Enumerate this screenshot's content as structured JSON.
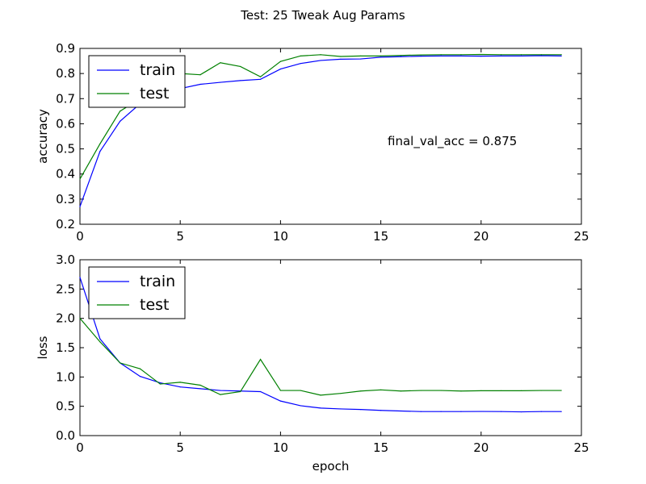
{
  "chart_data": {
    "title": "Test: 25 Tweak Aug Params",
    "colors": {
      "train": "#0000ff",
      "test": "#008000"
    },
    "subplots": [
      {
        "type": "line",
        "xlabel": "",
        "ylabel": "accuracy",
        "xlim": [
          0,
          25
        ],
        "ylim": [
          0.2,
          0.9
        ],
        "xticks": [
          "0",
          "5",
          "10",
          "15",
          "20",
          "25"
        ],
        "yticks": [
          "0.2",
          "0.3",
          "0.4",
          "0.5",
          "0.6",
          "0.7",
          "0.8",
          "0.9"
        ],
        "legend_position": "top-left",
        "annotation": "final_val_acc = 0.875",
        "x": [
          0,
          1,
          2,
          3,
          4,
          5,
          6,
          7,
          8,
          9,
          10,
          11,
          12,
          13,
          14,
          15,
          16,
          17,
          18,
          19,
          20,
          21,
          22,
          23,
          24
        ],
        "series": [
          {
            "name": "train",
            "values": [
              0.27,
              0.49,
              0.61,
              0.68,
              0.71,
              0.74,
              0.757,
              0.765,
              0.772,
              0.777,
              0.818,
              0.84,
              0.852,
              0.857,
              0.858,
              0.865,
              0.867,
              0.869,
              0.87,
              0.87,
              0.869,
              0.87,
              0.87,
              0.871,
              0.87
            ]
          },
          {
            "name": "test",
            "values": [
              0.38,
              0.52,
              0.65,
              0.7,
              0.74,
              0.8,
              0.795,
              0.843,
              0.828,
              0.787,
              0.848,
              0.87,
              0.875,
              0.868,
              0.87,
              0.87,
              0.872,
              0.874,
              0.875,
              0.875,
              0.876,
              0.875,
              0.875,
              0.875,
              0.875
            ]
          }
        ]
      },
      {
        "type": "line",
        "xlabel": "epoch",
        "ylabel": "loss",
        "xlim": [
          0,
          25
        ],
        "ylim": [
          0.0,
          3.0
        ],
        "xticks": [
          "0",
          "5",
          "10",
          "15",
          "20",
          "25"
        ],
        "yticks": [
          "0.0",
          "0.5",
          "1.0",
          "1.5",
          "2.0",
          "2.5",
          "3.0"
        ],
        "legend_position": "top-left",
        "x": [
          0,
          1,
          2,
          3,
          4,
          5,
          6,
          7,
          8,
          9,
          10,
          11,
          12,
          13,
          14,
          15,
          16,
          17,
          18,
          19,
          20,
          21,
          22,
          23,
          24
        ],
        "series": [
          {
            "name": "train",
            "values": [
              2.7,
              1.65,
              1.24,
              1.01,
              0.9,
              0.83,
              0.8,
              0.77,
              0.76,
              0.75,
              0.59,
              0.51,
              0.47,
              0.455,
              0.445,
              0.43,
              0.42,
              0.41,
              0.41,
              0.41,
              0.412,
              0.41,
              0.405,
              0.41,
              0.41
            ]
          },
          {
            "name": "test",
            "values": [
              2.0,
              1.6,
              1.24,
              1.14,
              0.88,
              0.91,
              0.86,
              0.7,
              0.75,
              1.3,
              0.77,
              0.77,
              0.69,
              0.72,
              0.76,
              0.78,
              0.76,
              0.77,
              0.77,
              0.76,
              0.765,
              0.765,
              0.765,
              0.77,
              0.77
            ]
          }
        ]
      }
    ]
  }
}
